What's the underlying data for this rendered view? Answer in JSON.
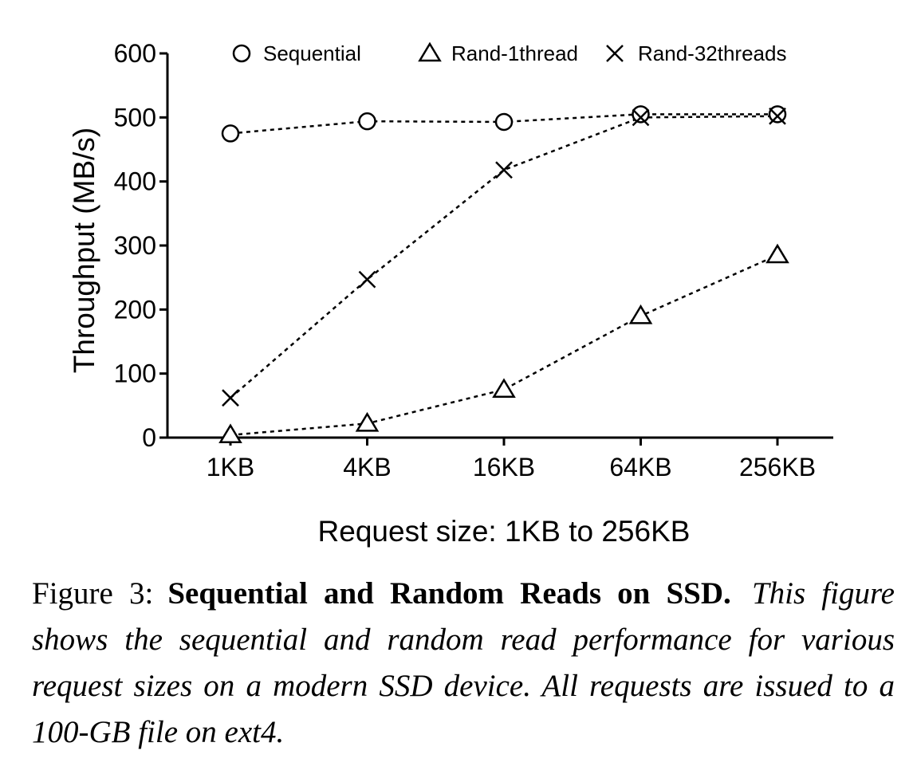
{
  "chart_data": {
    "type": "line",
    "categories": [
      "1KB",
      "4KB",
      "16KB",
      "64KB",
      "256KB"
    ],
    "xlabel": "Request size: 1KB to 256KB",
    "ylabel": "Throughput (MB/s)",
    "ylim": [
      0,
      600
    ],
    "yticks": [
      0,
      100,
      200,
      300,
      400,
      500,
      600
    ],
    "grid": false,
    "legend_placement": "top",
    "line_style": "dotted",
    "series": [
      {
        "name": "Sequential",
        "marker": "circle",
        "values": [
          475,
          494,
          493,
          505,
          505
        ]
      },
      {
        "name": "Rand-1thread",
        "marker": "triangle",
        "values": [
          4,
          22,
          75,
          190,
          285
        ]
      },
      {
        "name": "Rand-32threads",
        "marker": "x",
        "values": [
          62,
          247,
          418,
          500,
          502
        ]
      }
    ]
  },
  "caption": {
    "label": "Figure 3:",
    "title": "Sequential and Random Reads on SSD.",
    "description": "This figure shows the sequential and random read performance for various request sizes on a modern SSD device. All requests are issued to a 100-GB file on ext4."
  }
}
